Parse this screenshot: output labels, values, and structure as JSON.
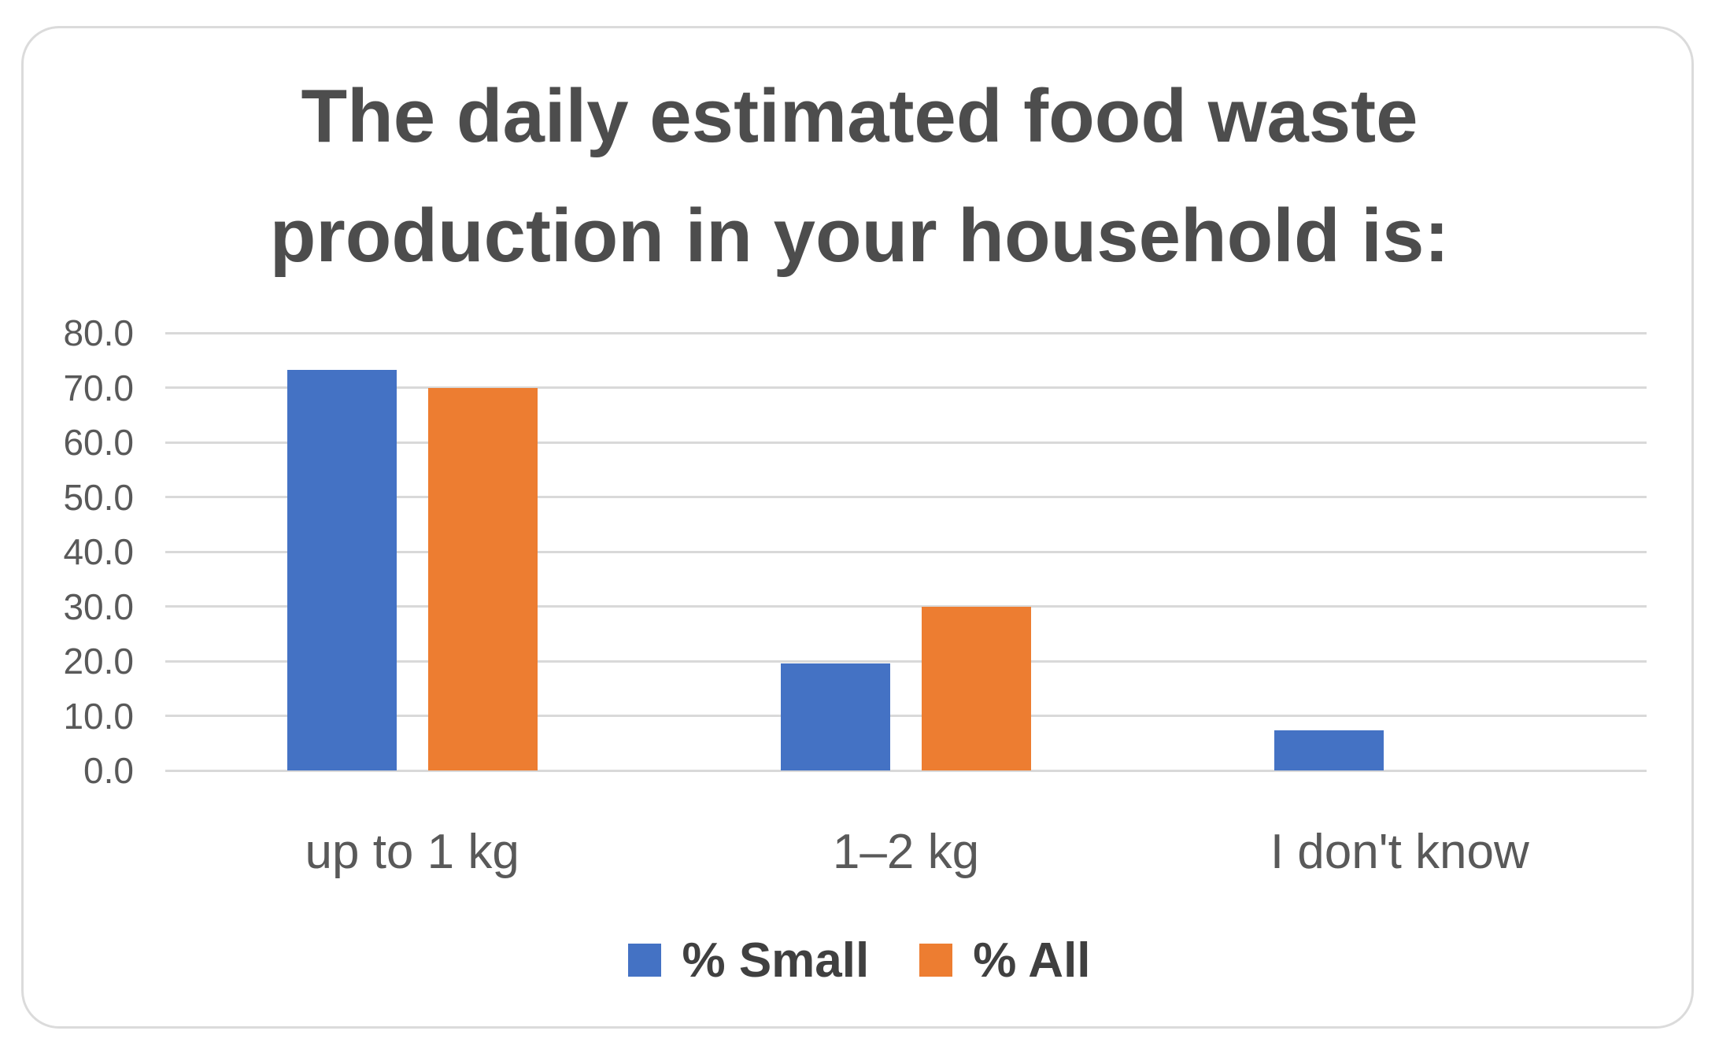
{
  "chart_data": {
    "type": "bar",
    "title": "The daily estimated food waste production in your household is:",
    "title_lines": [
      "The daily estimated food waste",
      "production in your household is:"
    ],
    "categories": [
      "up to 1 kg",
      "1–2 kg",
      "I don't know"
    ],
    "series": [
      {
        "name": "% Small",
        "color": "#4472C4",
        "values": [
          73.3,
          19.5,
          7.3
        ]
      },
      {
        "name": "% All",
        "color": "#ED7D31",
        "values": [
          70.0,
          30.0,
          0.0
        ]
      }
    ],
    "xlabel": "",
    "ylabel": "",
    "ylim": [
      0,
      80
    ],
    "yticks": [
      0,
      10,
      20,
      30,
      40,
      50,
      60,
      70,
      80
    ],
    "ytick_labels": [
      "0.0",
      "10.0",
      "20.0",
      "30.0",
      "40.0",
      "50.0",
      "60.0",
      "70.0",
      "80.0"
    ],
    "grid": true,
    "legend_position": "bottom",
    "colors": {
      "gridline": "#D9D9D9",
      "axis_text": "#595959",
      "title_text": "#4D4D4D",
      "legend_text": "#404040",
      "frame_border": "#DBDBDB",
      "background": "#FFFFFF"
    }
  }
}
